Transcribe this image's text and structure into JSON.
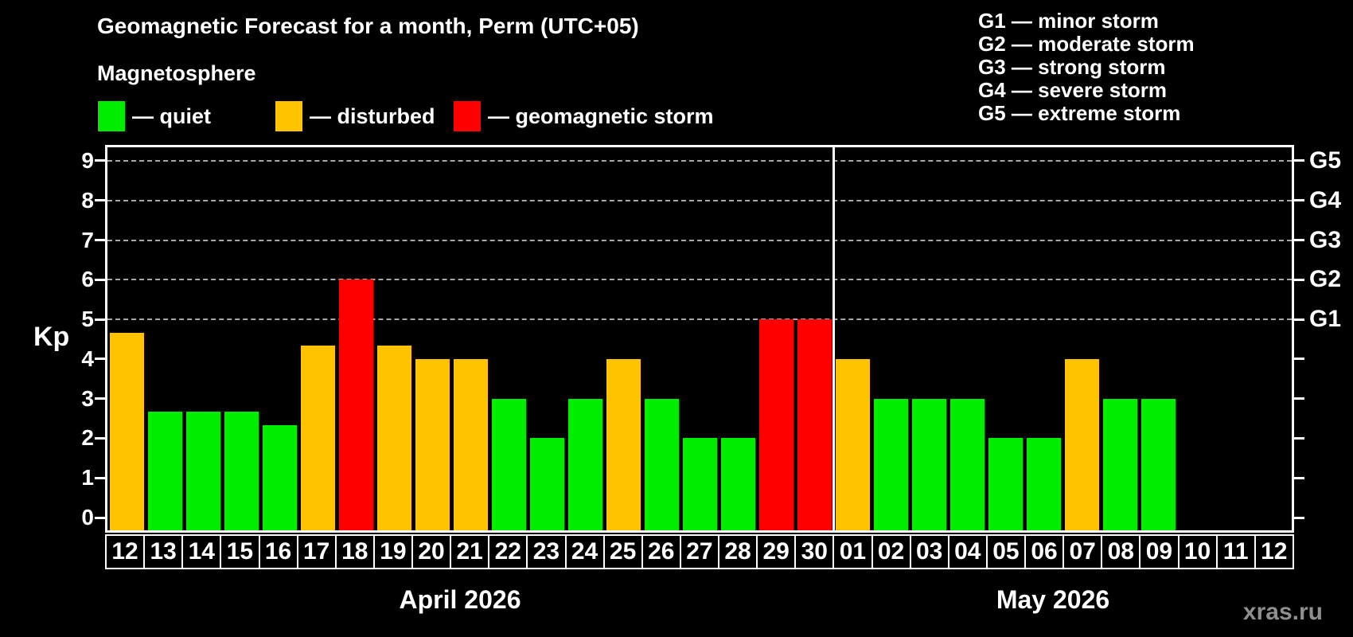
{
  "title": "Geomagnetic Forecast for a month, Perm (UTC+05)",
  "legend": {
    "heading": "Magnetosphere",
    "items": [
      {
        "name": "quiet",
        "label": "— quiet",
        "color": "#00ed00"
      },
      {
        "name": "disturbed",
        "label": "— disturbed",
        "color": "#ffc300"
      },
      {
        "name": "storm",
        "label": "— geomagnetic storm",
        "color": "#ff0000"
      }
    ]
  },
  "g_legend": [
    "G1 — minor storm",
    "G2 — moderate storm",
    "G3 — strong storm",
    "G4 — severe storm",
    "G5 — extreme storm"
  ],
  "watermark": "xras.ru",
  "chart_data": {
    "type": "bar",
    "ylabel": "Kp",
    "ylim": [
      0,
      9
    ],
    "yticks": [
      0,
      1,
      2,
      3,
      4,
      5,
      6,
      7,
      8,
      9
    ],
    "gridlines_at": [
      5,
      6,
      7,
      8,
      9
    ],
    "grid_style": "dashed",
    "right_axis_labels": [
      {
        "kp": 5,
        "label": "G1"
      },
      {
        "kp": 6,
        "label": "G2"
      },
      {
        "kp": 7,
        "label": "G3"
      },
      {
        "kp": 8,
        "label": "G4"
      },
      {
        "kp": 9,
        "label": "G5"
      }
    ],
    "months": [
      {
        "label": "April 2026",
        "days": 19
      },
      {
        "label": "May 2026",
        "days": 12
      }
    ],
    "categories": [
      "12",
      "13",
      "14",
      "15",
      "16",
      "17",
      "18",
      "19",
      "20",
      "21",
      "22",
      "23",
      "24",
      "25",
      "26",
      "27",
      "28",
      "29",
      "30",
      "01",
      "02",
      "03",
      "04",
      "05",
      "06",
      "07",
      "08",
      "09",
      "10",
      "11",
      "12"
    ],
    "values": [
      4.67,
      2.67,
      2.67,
      2.67,
      2.33,
      4.33,
      6,
      4.33,
      4,
      4,
      3,
      2,
      3,
      4,
      3,
      2,
      2,
      5,
      5,
      4,
      3,
      3,
      3,
      2,
      2,
      4,
      3,
      3,
      null,
      null,
      null
    ],
    "statuses": [
      "disturbed",
      "quiet",
      "quiet",
      "quiet",
      "quiet",
      "disturbed",
      "storm",
      "disturbed",
      "disturbed",
      "disturbed",
      "quiet",
      "quiet",
      "quiet",
      "disturbed",
      "quiet",
      "quiet",
      "quiet",
      "storm",
      "storm",
      "disturbed",
      "quiet",
      "quiet",
      "quiet",
      "quiet",
      "quiet",
      "disturbed",
      "quiet",
      "quiet",
      null,
      null,
      null
    ],
    "status_colors": {
      "quiet": "#00ed00",
      "disturbed": "#ffc300",
      "storm": "#ff0000"
    }
  }
}
